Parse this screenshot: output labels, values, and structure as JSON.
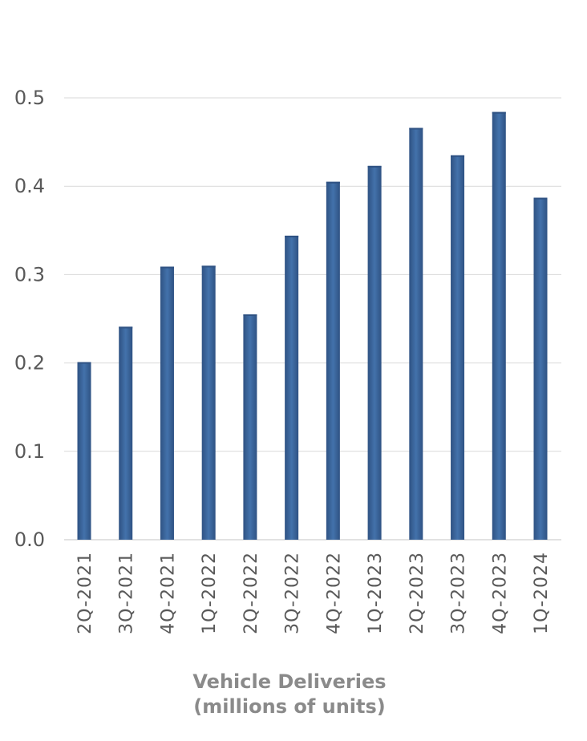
{
  "chart_data": {
    "type": "bar",
    "categories": [
      "2Q-2021",
      "3Q-2021",
      "4Q-2021",
      "1Q-2022",
      "2Q-2022",
      "3Q-2022",
      "4Q-2022",
      "1Q-2023",
      "2Q-2023",
      "3Q-2023",
      "4Q-2023",
      "1Q-2024"
    ],
    "values": [
      0.201,
      0.241,
      0.309,
      0.31,
      0.255,
      0.344,
      0.405,
      0.423,
      0.466,
      0.435,
      0.484,
      0.387
    ],
    "title": "Vehicle Deliveries",
    "subtitle": "(millions of units)",
    "xlabel": "",
    "ylabel": "",
    "ylim": [
      0,
      0.5
    ],
    "yticks": [
      "0.0",
      "0.1",
      "0.2",
      "0.3",
      "0.4",
      "0.5"
    ],
    "grid": true,
    "legend": "none",
    "bar_color": "#3e68a0",
    "bar_color_dark": "#2f5283",
    "grid_color": "#d9d9d9"
  }
}
